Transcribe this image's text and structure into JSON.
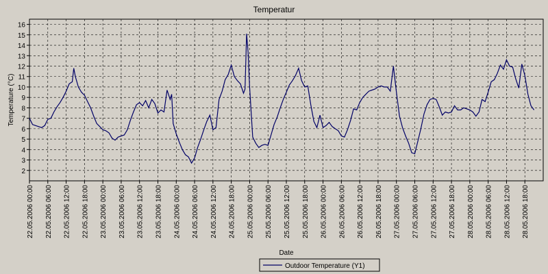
{
  "chart_data": {
    "type": "line",
    "title": "Temperatur",
    "xlabel": "Date",
    "ylabel": "Temperature (°C)",
    "ylim": [
      1,
      16.5
    ],
    "yticks": [
      2,
      3,
      4,
      5,
      6,
      7,
      8,
      9,
      10,
      11,
      12,
      13,
      14,
      15,
      16
    ],
    "xlim": [
      "2006-05-22 00:00",
      "2006-05-29 00:00"
    ],
    "grid": true,
    "legend_position": "bottom-center",
    "xtick_labels": [
      "22.05.2006 00:00",
      "22.05.2006 06:00",
      "22.05.2006 12:00",
      "22.05.2006 18:00",
      "23.05.2006 00:00",
      "23.05.2006 06:00",
      "23.05.2006 12:00",
      "23.05.2006 18:00",
      "24.05.2006 00:00",
      "24.05.2006 06:00",
      "24.05.2006 12:00",
      "24.05.2006 18:00",
      "25.05.2006 00:00",
      "25.05.2006 06:00",
      "25.05.2006 12:00",
      "25.05.2006 18:00",
      "26.05.2006 00:00",
      "26.05.2006 06:00",
      "26.05.2006 12:00",
      "26.05.2006 18:00",
      "27.05.2006 00:00",
      "27.05.2006 06:00",
      "27.05.2006 12:00",
      "27.05.2006 18:00",
      "28.05.2006 00:00",
      "28.05.2006 06:00",
      "28.05.2006 12:00",
      "28.05.2006 18:00"
    ],
    "series": [
      {
        "name": "Outdoor Temperature (Y1)",
        "color": "#000066",
        "points": [
          [
            "2006-05-22 00:00",
            7.0
          ],
          [
            "2006-05-22 01:00",
            6.4
          ],
          [
            "2006-05-22 02:00",
            6.3
          ],
          [
            "2006-05-22 03:00",
            6.2
          ],
          [
            "2006-05-22 04:00",
            6.1
          ],
          [
            "2006-05-22 05:00",
            6.3
          ],
          [
            "2006-05-22 06:00",
            6.9
          ],
          [
            "2006-05-22 07:00",
            7.0
          ],
          [
            "2006-05-22 08:00",
            7.6
          ],
          [
            "2006-05-22 09:00",
            8.1
          ],
          [
            "2006-05-22 10:00",
            8.5
          ],
          [
            "2006-05-22 11:00",
            9.0
          ],
          [
            "2006-05-22 12:00",
            9.6
          ],
          [
            "2006-05-22 13:00",
            10.3
          ],
          [
            "2006-05-22 14:00",
            10.5
          ],
          [
            "2006-05-22 14:30",
            11.8
          ],
          [
            "2006-05-22 15:00",
            11.0
          ],
          [
            "2006-05-22 16:00",
            10.0
          ],
          [
            "2006-05-22 17:00",
            9.5
          ],
          [
            "2006-05-22 18:00",
            9.2
          ],
          [
            "2006-05-22 19:00",
            8.6
          ],
          [
            "2006-05-22 20:00",
            8.0
          ],
          [
            "2006-05-22 21:00",
            7.2
          ],
          [
            "2006-05-22 22:00",
            6.5
          ],
          [
            "2006-05-22 23:00",
            6.2
          ],
          [
            "2006-05-23 00:00",
            5.9
          ],
          [
            "2006-05-23 01:00",
            5.8
          ],
          [
            "2006-05-23 02:00",
            5.6
          ],
          [
            "2006-05-23 03:00",
            5.1
          ],
          [
            "2006-05-23 04:00",
            4.9
          ],
          [
            "2006-05-23 05:00",
            5.2
          ],
          [
            "2006-05-23 06:00",
            5.3
          ],
          [
            "2006-05-23 07:00",
            5.4
          ],
          [
            "2006-05-23 08:00",
            5.9
          ],
          [
            "2006-05-23 09:00",
            6.8
          ],
          [
            "2006-05-23 10:00",
            7.6
          ],
          [
            "2006-05-23 11:00",
            8.3
          ],
          [
            "2006-05-23 12:00",
            8.5
          ],
          [
            "2006-05-23 13:00",
            8.2
          ],
          [
            "2006-05-23 14:00",
            8.7
          ],
          [
            "2006-05-23 15:00",
            8.0
          ],
          [
            "2006-05-23 16:00",
            8.8
          ],
          [
            "2006-05-23 17:00",
            8.4
          ],
          [
            "2006-05-23 18:00",
            7.5
          ],
          [
            "2006-05-23 19:00",
            7.8
          ],
          [
            "2006-05-23 20:00",
            7.6
          ],
          [
            "2006-05-23 21:00",
            9.7
          ],
          [
            "2006-05-23 22:00",
            8.8
          ],
          [
            "2006-05-23 22:30",
            9.3
          ],
          [
            "2006-05-23 23:00",
            6.5
          ],
          [
            "2006-05-24 00:00",
            5.5
          ],
          [
            "2006-05-24 01:00",
            4.7
          ],
          [
            "2006-05-24 02:00",
            4.0
          ],
          [
            "2006-05-24 03:00",
            3.5
          ],
          [
            "2006-05-24 04:00",
            3.3
          ],
          [
            "2006-05-24 05:00",
            2.7
          ],
          [
            "2006-05-24 06:00",
            3.2
          ],
          [
            "2006-05-24 07:00",
            4.2
          ],
          [
            "2006-05-24 08:00",
            5.0
          ],
          [
            "2006-05-24 09:00",
            5.9
          ],
          [
            "2006-05-24 10:00",
            6.7
          ],
          [
            "2006-05-24 11:00",
            7.3
          ],
          [
            "2006-05-24 12:00",
            5.9
          ],
          [
            "2006-05-24 13:00",
            6.1
          ],
          [
            "2006-05-24 14:00",
            8.8
          ],
          [
            "2006-05-24 15:00",
            9.6
          ],
          [
            "2006-05-24 16:00",
            10.7
          ],
          [
            "2006-05-24 17:00",
            11.2
          ],
          [
            "2006-05-24 18:00",
            12.1
          ],
          [
            "2006-05-24 19:00",
            11.0
          ],
          [
            "2006-05-24 20:00",
            10.6
          ],
          [
            "2006-05-24 21:00",
            10.3
          ],
          [
            "2006-05-24 22:00",
            9.4
          ],
          [
            "2006-05-24 22:30",
            9.8
          ],
          [
            "2006-05-24 23:00",
            15.1
          ],
          [
            "2006-05-24 23:30",
            13.3
          ],
          [
            "2006-05-25 00:00",
            10.0
          ],
          [
            "2006-05-25 01:00",
            5.2
          ],
          [
            "2006-05-25 02:00",
            4.6
          ],
          [
            "2006-05-25 03:00",
            4.2
          ],
          [
            "2006-05-25 04:00",
            4.4
          ],
          [
            "2006-05-25 05:00",
            4.5
          ],
          [
            "2006-05-25 06:00",
            4.4
          ],
          [
            "2006-05-25 07:00",
            5.4
          ],
          [
            "2006-05-25 08:00",
            6.4
          ],
          [
            "2006-05-25 09:00",
            7.1
          ],
          [
            "2006-05-25 10:00",
            8.0
          ],
          [
            "2006-05-25 11:00",
            8.8
          ],
          [
            "2006-05-25 12:00",
            9.5
          ],
          [
            "2006-05-25 13:00",
            10.2
          ],
          [
            "2006-05-25 14:00",
            10.6
          ],
          [
            "2006-05-25 15:00",
            11.1
          ],
          [
            "2006-05-25 16:00",
            11.8
          ],
          [
            "2006-05-25 17:00",
            10.6
          ],
          [
            "2006-05-25 18:00",
            10.0
          ],
          [
            "2006-05-25 19:00",
            10.1
          ],
          [
            "2006-05-25 20:00",
            8.3
          ],
          [
            "2006-05-25 21:00",
            6.7
          ],
          [
            "2006-05-25 22:00",
            6.1
          ],
          [
            "2006-05-25 23:00",
            7.3
          ],
          [
            "2006-05-26 00:00",
            6.1
          ],
          [
            "2006-05-26 01:00",
            6.3
          ],
          [
            "2006-05-26 02:00",
            6.6
          ],
          [
            "2006-05-26 03:00",
            6.2
          ],
          [
            "2006-05-26 04:00",
            6.0
          ],
          [
            "2006-05-26 05:00",
            5.8
          ],
          [
            "2006-05-26 06:00",
            5.3
          ],
          [
            "2006-05-26 07:00",
            5.2
          ],
          [
            "2006-05-26 08:00",
            5.9
          ],
          [
            "2006-05-26 09:00",
            6.8
          ],
          [
            "2006-05-26 10:00",
            7.9
          ],
          [
            "2006-05-26 11:00",
            7.8
          ],
          [
            "2006-05-26 12:00",
            8.5
          ],
          [
            "2006-05-26 13:00",
            9.0
          ],
          [
            "2006-05-26 14:00",
            9.3
          ],
          [
            "2006-05-26 15:00",
            9.6
          ],
          [
            "2006-05-26 16:00",
            9.7
          ],
          [
            "2006-05-26 17:00",
            9.8
          ],
          [
            "2006-05-26 18:00",
            10.0
          ],
          [
            "2006-05-26 19:00",
            10.1
          ],
          [
            "2006-05-26 20:00",
            10.0
          ],
          [
            "2006-05-26 21:00",
            10.0
          ],
          [
            "2006-05-26 22:00",
            9.6
          ],
          [
            "2006-05-26 23:00",
            12.0
          ],
          [
            "2006-05-27 00:00",
            9.5
          ],
          [
            "2006-05-27 01:00",
            7.2
          ],
          [
            "2006-05-27 02:00",
            6.1
          ],
          [
            "2006-05-27 03:00",
            5.3
          ],
          [
            "2006-05-27 04:00",
            4.6
          ],
          [
            "2006-05-27 05:00",
            3.7
          ],
          [
            "2006-05-27 06:00",
            3.6
          ],
          [
            "2006-05-27 07:00",
            4.8
          ],
          [
            "2006-05-27 08:00",
            6.0
          ],
          [
            "2006-05-27 09:00",
            7.4
          ],
          [
            "2006-05-27 10:00",
            8.3
          ],
          [
            "2006-05-27 11:00",
            8.8
          ],
          [
            "2006-05-27 12:00",
            8.9
          ],
          [
            "2006-05-27 13:00",
            8.8
          ],
          [
            "2006-05-27 14:00",
            8.1
          ],
          [
            "2006-05-27 15:00",
            7.3
          ],
          [
            "2006-05-27 16:00",
            7.6
          ],
          [
            "2006-05-27 17:00",
            7.5
          ],
          [
            "2006-05-27 18:00",
            7.6
          ],
          [
            "2006-05-27 19:00",
            8.2
          ],
          [
            "2006-05-27 20:00",
            7.8
          ],
          [
            "2006-05-27 21:00",
            7.8
          ],
          [
            "2006-05-27 22:00",
            8.0
          ],
          [
            "2006-05-27 23:00",
            7.9
          ],
          [
            "2006-05-28 00:00",
            7.8
          ],
          [
            "2006-05-28 01:00",
            7.6
          ],
          [
            "2006-05-28 02:00",
            7.2
          ],
          [
            "2006-05-28 03:00",
            7.6
          ],
          [
            "2006-05-28 04:00",
            8.8
          ],
          [
            "2006-05-28 05:00",
            8.6
          ],
          [
            "2006-05-28 06:00",
            9.5
          ],
          [
            "2006-05-28 07:00",
            10.5
          ],
          [
            "2006-05-28 08:00",
            10.7
          ],
          [
            "2006-05-28 09:00",
            11.3
          ],
          [
            "2006-05-28 10:00",
            12.1
          ],
          [
            "2006-05-28 11:00",
            11.7
          ],
          [
            "2006-05-28 12:00",
            12.6
          ],
          [
            "2006-05-28 13:00",
            12.0
          ],
          [
            "2006-05-28 14:00",
            11.9
          ],
          [
            "2006-05-28 15:00",
            10.8
          ],
          [
            "2006-05-28 16:00",
            9.9
          ],
          [
            "2006-05-28 17:00",
            12.2
          ],
          [
            "2006-05-28 18:00",
            11.1
          ],
          [
            "2006-05-28 19:00",
            9.3
          ],
          [
            "2006-05-28 20:00",
            8.2
          ],
          [
            "2006-05-28 21:00",
            7.8
          ]
        ]
      }
    ]
  }
}
